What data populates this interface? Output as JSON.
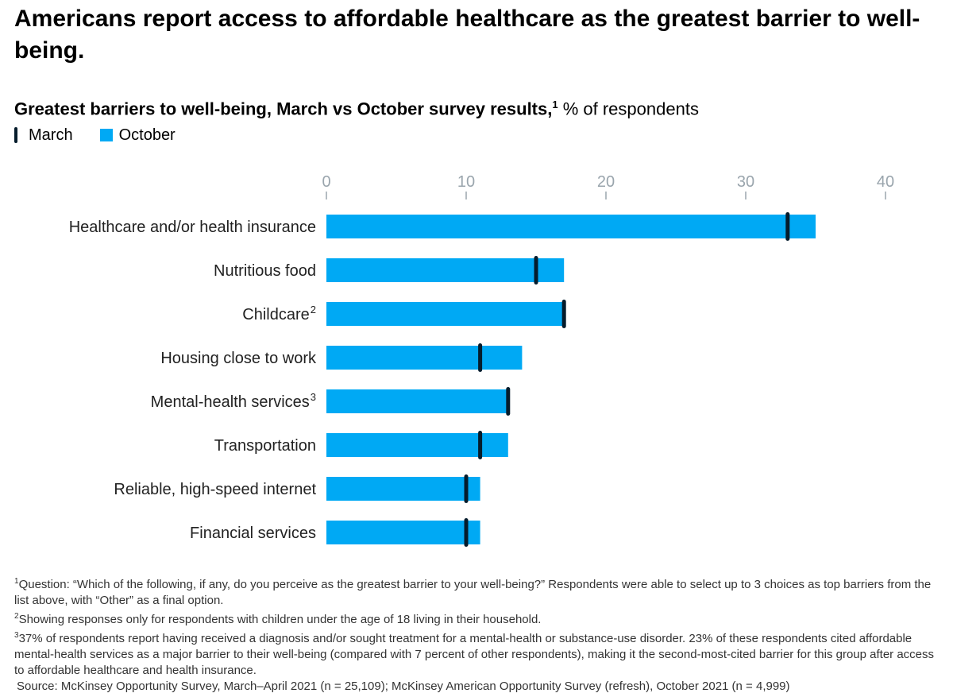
{
  "title": "Americans report access to affordable healthcare as the greatest barrier to well-being.",
  "subtitle": {
    "bold": "Greatest barriers to well-being, March vs October survey results,",
    "sup": "1",
    "unit": "% of respondents"
  },
  "legend": {
    "march": "March",
    "october": "October"
  },
  "colors": {
    "october": "#00a9f4",
    "march": "#051c2c",
    "axis": "#9aa5ad",
    "text": "#222222"
  },
  "chart_data": {
    "type": "bar",
    "orientation": "horizontal",
    "title": "Greatest barriers to well-being, March vs October survey results",
    "xlabel": "% of respondents",
    "xlim": [
      0,
      40
    ],
    "ticks": [
      0,
      10,
      20,
      30,
      40
    ],
    "categories": [
      {
        "label": "Healthcare and/or health insurance",
        "sup": ""
      },
      {
        "label": "Nutritious food",
        "sup": ""
      },
      {
        "label": "Childcare",
        "sup": "2"
      },
      {
        "label": "Housing close to work",
        "sup": ""
      },
      {
        "label": "Mental-health services",
        "sup": "3"
      },
      {
        "label": "Transportation",
        "sup": ""
      },
      {
        "label": "Reliable, high-speed internet",
        "sup": ""
      },
      {
        "label": "Financial services",
        "sup": ""
      }
    ],
    "series": [
      {
        "name": "October",
        "style": "bar",
        "values": [
          35,
          17,
          17,
          14,
          13,
          13,
          11,
          11
        ]
      },
      {
        "name": "March",
        "style": "marker",
        "values": [
          33,
          15,
          17,
          11,
          13,
          11,
          10,
          10
        ]
      }
    ]
  },
  "footnotes": [
    {
      "sup": "1",
      "text": "Question: “Which of the following, if any, do you perceive as the greatest barrier to your well-being?” Respondents were able to select up to 3 choices as top barriers from the list above, with “Other” as a final option."
    },
    {
      "sup": "2",
      "text": "Showing responses only for respondents with children under the age of 18 living in their household."
    },
    {
      "sup": "3",
      "text": "37% of respondents report having received a diagnosis and/or sought treatment for a mental-health or substance-use disorder. 23% of these respondents cited affordable mental-health services as a major barrier to their well-being (compared with 7 percent of other respondents), making it the second-most-cited barrier for this group after access to affordable healthcare and health insurance."
    }
  ],
  "source": "Source: McKinsey Opportunity Survey, March–April 2021 (n = 25,109); McKinsey American Opportunity Survey (refresh), October 2021 (n = 4,999)"
}
